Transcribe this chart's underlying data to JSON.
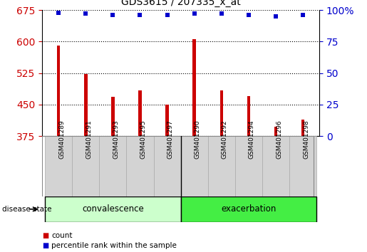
{
  "title": "GDS3615 / 207335_x_at",
  "samples": [
    "GSM401289",
    "GSM401291",
    "GSM401293",
    "GSM401295",
    "GSM401297",
    "GSM401290",
    "GSM401292",
    "GSM401294",
    "GSM401296",
    "GSM401298"
  ],
  "counts": [
    590,
    522,
    468,
    483,
    449,
    605,
    483,
    470,
    397,
    415
  ],
  "percentiles": [
    98,
    97,
    96,
    96,
    96,
    97,
    97,
    96,
    95,
    96
  ],
  "ylim": [
    375,
    675
  ],
  "yticks": [
    375,
    450,
    525,
    600,
    675
  ],
  "right_yticks": [
    0,
    25,
    50,
    75,
    100
  ],
  "bar_color": "#cc0000",
  "percentile_color": "#0000cc",
  "groups": [
    {
      "label": "convalescence",
      "start": 0,
      "end": 5,
      "color": "#ccffcc"
    },
    {
      "label": "exacerbation",
      "start": 5,
      "end": 10,
      "color": "#44ee44"
    }
  ],
  "group_label": "disease state",
  "legend_count_label": "count",
  "legend_percentile_label": "percentile rank within the sample",
  "plot_bg_color": "#ffffff",
  "grid_color": "#000000",
  "tick_label_color_left": "#cc0000",
  "tick_label_color_right": "#0000cc",
  "sample_box_color": "#d3d3d3",
  "bar_width": 0.12
}
